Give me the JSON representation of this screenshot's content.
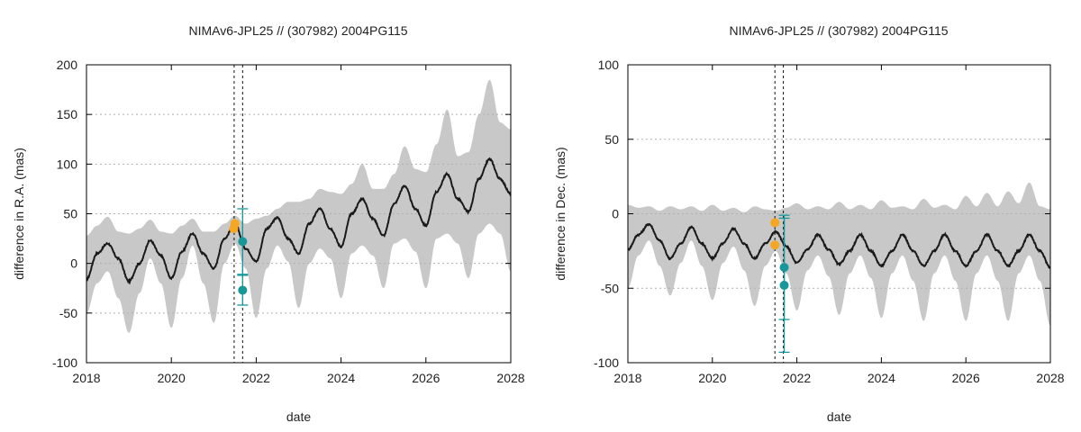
{
  "chart_data": [
    {
      "type": "line",
      "title": "NIMAv6-JPL25 // (307982) 2004PG115",
      "xlabel": "date",
      "ylabel": "difference in R.A. (mas)",
      "xlim": [
        2018,
        2028
      ],
      "ylim": [
        -100,
        200
      ],
      "xticks": [
        2018,
        2020,
        2022,
        2024,
        2026,
        2028
      ],
      "yticks": [
        -100,
        -50,
        0,
        50,
        100,
        150,
        200
      ],
      "grid": true,
      "band_color": "#c8c8c8",
      "line_color": "#1a1a1a",
      "model_curve": {
        "x": [
          2018.0,
          2018.25,
          2018.5,
          2018.75,
          2019.0,
          2019.25,
          2019.5,
          2019.75,
          2020.0,
          2020.25,
          2020.5,
          2020.75,
          2021.0,
          2021.25,
          2021.5,
          2021.75,
          2022.0,
          2022.25,
          2022.5,
          2022.75,
          2023.0,
          2023.25,
          2023.5,
          2023.75,
          2024.0,
          2024.25,
          2024.5,
          2024.75,
          2025.0,
          2025.25,
          2025.5,
          2025.75,
          2026.0,
          2026.25,
          2026.5,
          2026.75,
          2027.0,
          2027.25,
          2027.5,
          2027.75,
          2028.0
        ],
        "y": [
          -16,
          10,
          20,
          5,
          -18,
          0,
          23,
          8,
          -15,
          12,
          30,
          10,
          -5,
          25,
          40,
          15,
          2,
          35,
          46,
          25,
          10,
          40,
          55,
          35,
          17,
          50,
          65,
          45,
          28,
          60,
          78,
          55,
          38,
          72,
          90,
          65,
          52,
          85,
          105,
          85,
          70
        ]
      },
      "uncertainty_band": {
        "x": [
          2018.0,
          2018.25,
          2018.5,
          2018.75,
          2019.0,
          2019.25,
          2019.5,
          2019.75,
          2020.0,
          2020.25,
          2020.5,
          2020.75,
          2021.0,
          2021.25,
          2021.5,
          2021.75,
          2022.0,
          2022.25,
          2022.5,
          2022.75,
          2023.0,
          2023.25,
          2023.5,
          2023.75,
          2024.0,
          2024.25,
          2024.5,
          2024.75,
          2025.0,
          2025.25,
          2025.5,
          2025.75,
          2026.0,
          2026.25,
          2026.5,
          2026.75,
          2027.0,
          2027.25,
          2027.5,
          2027.75,
          2028.0
        ],
        "upper": [
          28,
          38,
          47,
          32,
          30,
          35,
          44,
          32,
          30,
          38,
          45,
          32,
          32,
          40,
          48,
          40,
          45,
          48,
          55,
          62,
          62,
          65,
          75,
          72,
          70,
          80,
          100,
          75,
          75,
          90,
          118,
          95,
          92,
          120,
          155,
          108,
          112,
          150,
          185,
          142,
          135
        ],
        "lower": [
          -50,
          -20,
          -8,
          -35,
          -70,
          -30,
          5,
          -20,
          -65,
          -15,
          18,
          -20,
          -60,
          0,
          20,
          -5,
          -55,
          -5,
          18,
          2,
          -45,
          0,
          15,
          5,
          -35,
          10,
          18,
          8,
          -25,
          20,
          25,
          12,
          -25,
          25,
          30,
          20,
          -15,
          30,
          40,
          30,
          -8
        ]
      },
      "observations": [
        {
          "series": "orange",
          "x": 2021.5,
          "y": 40,
          "err": 0
        },
        {
          "series": "orange",
          "x": 2021.47,
          "y": 35,
          "err": 0
        },
        {
          "series": "teal",
          "x": 2021.68,
          "y": 22,
          "err": 33
        },
        {
          "series": "teal",
          "x": 2021.68,
          "y": -27,
          "err": 15
        }
      ],
      "vertical_lines": [
        2021.48,
        2021.68
      ],
      "colors": {
        "orange": "#f5a623",
        "teal": "#17979a"
      }
    },
    {
      "type": "line",
      "title": "NIMAv6-JPL25 // (307982) 2004PG115",
      "xlabel": "date",
      "ylabel": "difference in Dec. (mas)",
      "xlim": [
        2018,
        2028
      ],
      "ylim": [
        -100,
        100
      ],
      "xticks": [
        2018,
        2020,
        2022,
        2024,
        2026,
        2028
      ],
      "yticks": [
        -100,
        -50,
        0,
        50,
        100
      ],
      "grid": true,
      "band_color": "#c8c8c8",
      "line_color": "#1a1a1a",
      "model_curve": {
        "x": [
          2018.0,
          2018.25,
          2018.5,
          2018.75,
          2019.0,
          2019.25,
          2019.5,
          2019.75,
          2020.0,
          2020.25,
          2020.5,
          2020.75,
          2021.0,
          2021.25,
          2021.5,
          2021.75,
          2022.0,
          2022.25,
          2022.5,
          2022.75,
          2023.0,
          2023.25,
          2023.5,
          2023.75,
          2024.0,
          2024.25,
          2024.5,
          2024.75,
          2025.0,
          2025.25,
          2025.5,
          2025.75,
          2026.0,
          2026.25,
          2026.5,
          2026.75,
          2027.0,
          2027.25,
          2027.5,
          2027.75,
          2028.0
        ],
        "y": [
          -24,
          -14,
          -7,
          -18,
          -30,
          -20,
          -9,
          -20,
          -30,
          -20,
          -10,
          -20,
          -30,
          -20,
          -12,
          -22,
          -33,
          -24,
          -14,
          -24,
          -34,
          -25,
          -14,
          -25,
          -35,
          -25,
          -14,
          -25,
          -35,
          -25,
          -14,
          -25,
          -35,
          -25,
          -14,
          -25,
          -35,
          -25,
          -14,
          -25,
          -36
        ]
      },
      "uncertainty_band": {
        "x": [
          2018.0,
          2018.25,
          2018.5,
          2018.75,
          2019.0,
          2019.25,
          2019.5,
          2019.75,
          2020.0,
          2020.25,
          2020.5,
          2020.75,
          2021.0,
          2021.25,
          2021.5,
          2021.75,
          2022.0,
          2022.25,
          2022.5,
          2022.75,
          2023.0,
          2023.25,
          2023.5,
          2023.75,
          2024.0,
          2024.25,
          2024.5,
          2024.75,
          2025.0,
          2025.25,
          2025.5,
          2025.75,
          2026.0,
          2026.25,
          2026.5,
          2026.75,
          2027.0,
          2027.25,
          2027.5,
          2027.75,
          2028.0
        ],
        "upper": [
          6,
          4,
          5,
          2,
          5,
          3,
          5,
          2,
          6,
          2,
          4,
          1,
          5,
          3,
          2,
          4,
          7,
          3,
          5,
          3,
          8,
          3,
          6,
          3,
          9,
          4,
          5,
          3,
          10,
          4,
          6,
          3,
          12,
          5,
          14,
          5,
          15,
          7,
          21,
          5,
          3
        ],
        "lower": [
          -50,
          -28,
          -18,
          -35,
          -55,
          -33,
          -18,
          -35,
          -58,
          -33,
          -22,
          -38,
          -62,
          -35,
          -25,
          -40,
          -65,
          -38,
          -28,
          -42,
          -68,
          -40,
          -28,
          -43,
          -70,
          -40,
          -28,
          -45,
          -72,
          -40,
          -28,
          -45,
          -72,
          -40,
          -28,
          -45,
          -72,
          -40,
          -28,
          -45,
          -75
        ]
      },
      "observations": [
        {
          "series": "orange",
          "x": 2021.48,
          "y": -6,
          "err": 0
        },
        {
          "series": "orange",
          "x": 2021.48,
          "y": -21,
          "err": 0
        },
        {
          "series": "teal",
          "x": 2021.7,
          "y": -36,
          "err": 35
        },
        {
          "series": "teal",
          "x": 2021.7,
          "y": -48,
          "err": 45
        }
      ],
      "vertical_lines": [
        2021.48,
        2021.68
      ],
      "colors": {
        "orange": "#f5a623",
        "teal": "#17979a"
      }
    }
  ]
}
